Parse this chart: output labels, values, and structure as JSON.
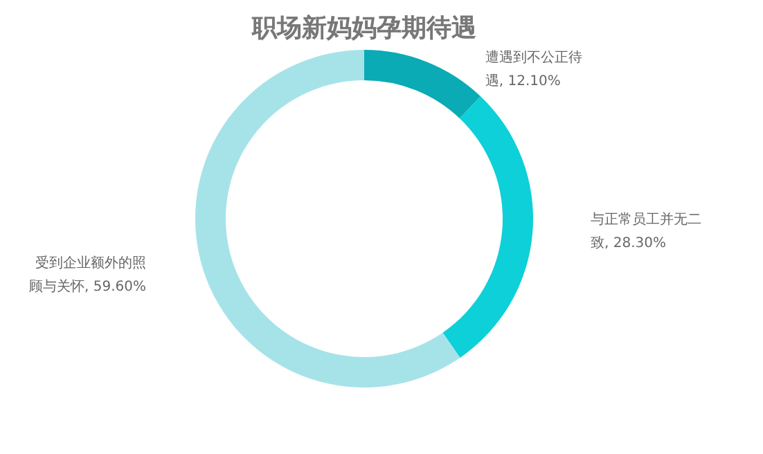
{
  "chart_data": {
    "type": "donut",
    "title": "职场新妈妈孕期待遇",
    "categories": [
      "遭遇到不公正待遇",
      "与正常员工并无二致",
      "受到企业额外的照顾与关怀"
    ],
    "values": [
      12.1,
      28.3,
      59.6
    ],
    "value_labels": [
      "12.10%",
      "28.30%",
      "59.60%"
    ],
    "colors": [
      "#0aabb5",
      "#0dd0d8",
      "#a6e3e9"
    ]
  }
}
